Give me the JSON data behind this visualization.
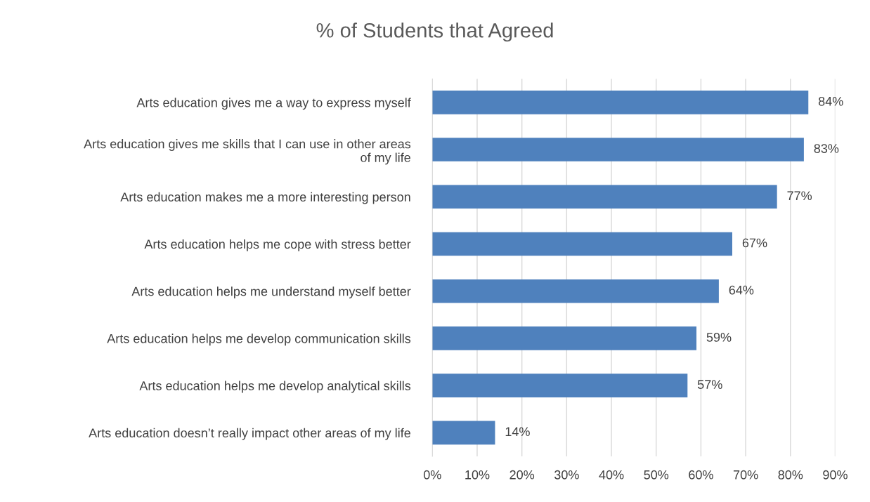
{
  "chart_data": {
    "type": "bar",
    "orientation": "horizontal",
    "title": "% of Students that Agreed",
    "categories": [
      "Arts education gives me a way to express myself",
      "Arts education gives me skills that I can use in other areas\nof my life",
      "Arts education makes me a more interesting person",
      "Arts education helps me cope with stress better",
      "Arts education helps me understand myself better",
      "Arts education helps me develop communication skills",
      "Arts education helps me develop analytical skills",
      "Arts education doesn’t really impact other areas of my life"
    ],
    "values": [
      84,
      83,
      77,
      67,
      64,
      59,
      57,
      14
    ],
    "value_labels": [
      "84%",
      "83%",
      "77%",
      "67%",
      "64%",
      "59%",
      "57%",
      "14%"
    ],
    "color": "#4f81bd",
    "xlim": [
      0,
      90
    ],
    "xticks": [
      {
        "value": 0,
        "label": "0%"
      },
      {
        "value": 10,
        "label": "10%"
      },
      {
        "value": 20,
        "label": "20%"
      },
      {
        "value": 30,
        "label": "30%"
      },
      {
        "value": 40,
        "label": "40%"
      },
      {
        "value": 50,
        "label": "50%"
      },
      {
        "value": 60,
        "label": "60%"
      },
      {
        "value": 70,
        "label": "70%"
      },
      {
        "value": 80,
        "label": "80%"
      },
      {
        "value": 90,
        "label": "90%"
      }
    ],
    "grid": "x"
  }
}
